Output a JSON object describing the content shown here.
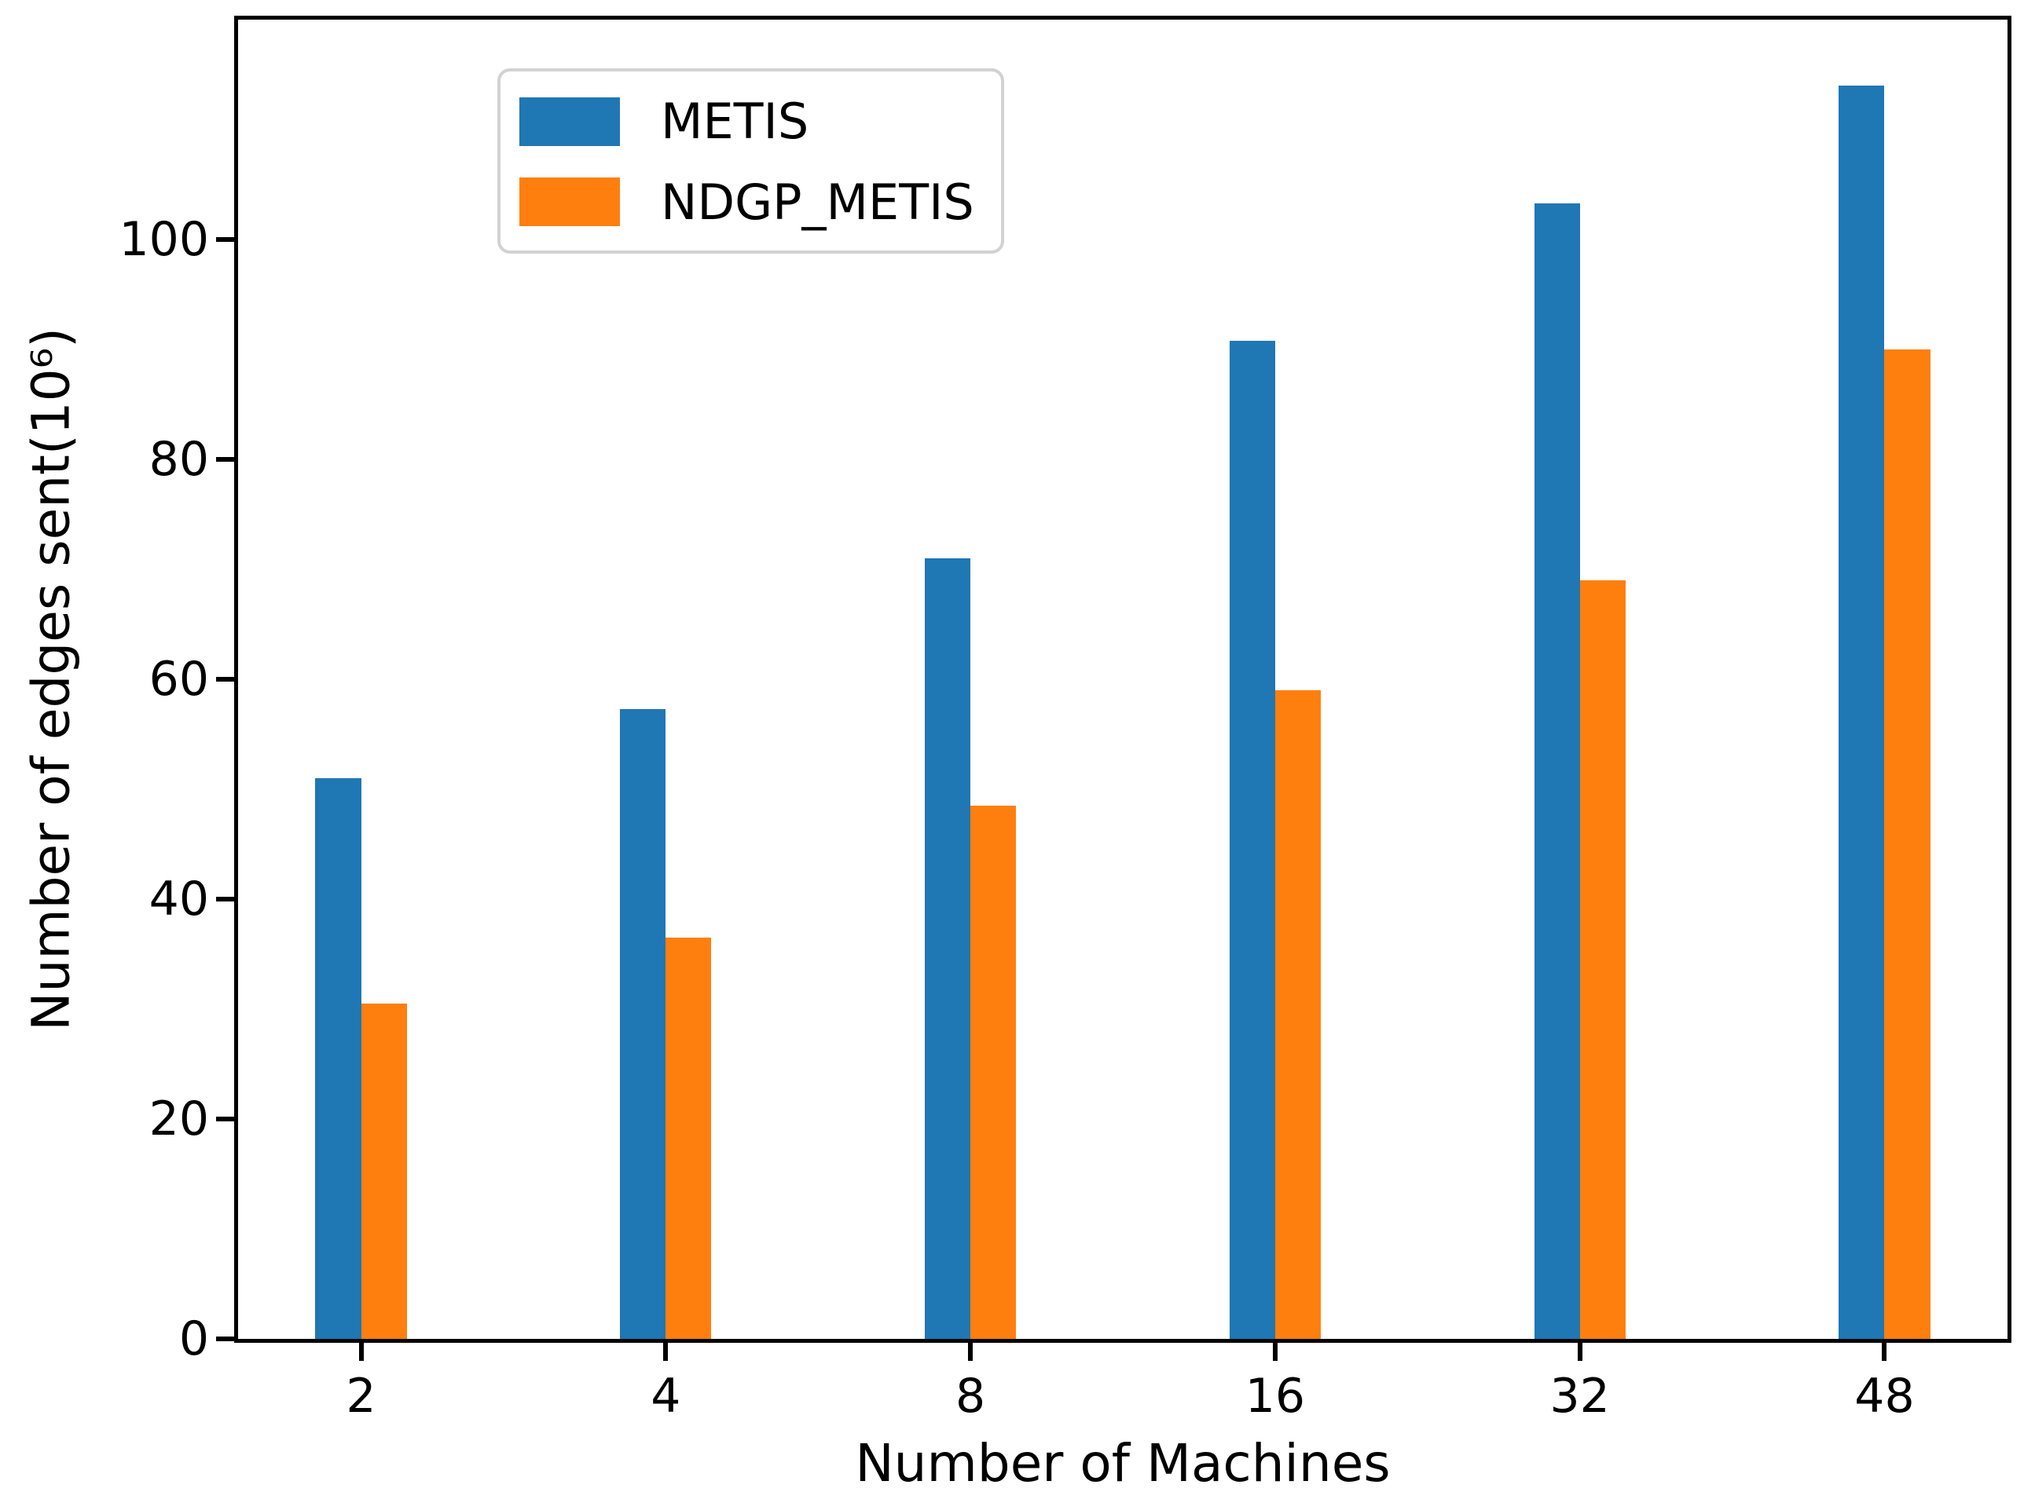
{
  "chart_data": {
    "type": "bar",
    "title": "",
    "xlabel": "Number of Machines",
    "ylabel": "Number of edges sent(10⁶)",
    "categories": [
      "2",
      "4",
      "8",
      "16",
      "32",
      "48"
    ],
    "series": [
      {
        "name": "METIS",
        "color": "#1f77b4",
        "values": [
          51.0,
          57.3,
          71.0,
          90.8,
          103.3,
          114.0
        ]
      },
      {
        "name": "NDGP_METIS",
        "color": "#ff7f0e",
        "values": [
          30.5,
          36.5,
          48.5,
          59.0,
          69.0,
          90.0
        ]
      }
    ],
    "ylim": [
      0,
      120
    ],
    "yticks": [
      0,
      20,
      40,
      60,
      80,
      100
    ],
    "grid": false,
    "legend_position": "upper-left",
    "bar_width_frac_of_group": 0.15
  },
  "colors": {
    "axis": "#000000",
    "background": "#ffffff",
    "legend_border": "#d2d2d2"
  }
}
